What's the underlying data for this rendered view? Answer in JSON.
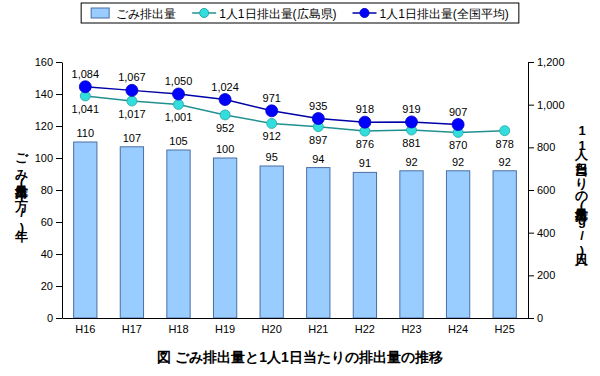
{
  "chart_data": {
    "type": "bar",
    "title": "図 ごみ排出量と1人1日当たりの排出量の推移",
    "ylabel": "ごみ排出量(万t/年)",
    "y2label": "1人1日当たりの排出量(g/人日)",
    "categories": [
      "H16",
      "H17",
      "H18",
      "H19",
      "H20",
      "H21",
      "H22",
      "H23",
      "H24",
      "H25"
    ],
    "series": [
      {
        "name": "ごみ排出量",
        "type": "bar",
        "color": "#99ccff",
        "values": [
          110,
          107,
          105,
          100,
          95,
          94,
          91,
          92,
          92,
          92
        ]
      },
      {
        "name": "1人1日排出量(広島県)",
        "type": "line",
        "axis": "y2",
        "color": "#33dddd",
        "marker": "circle",
        "values": [
          1041,
          1017,
          1001,
          952,
          912,
          897,
          876,
          881,
          870,
          878
        ],
        "value_labels": [
          "1,041",
          "1,017",
          "1,001",
          "952",
          "912",
          "897",
          "876",
          "881",
          "870",
          "878"
        ]
      },
      {
        "name": "1人1日排出量(全国平均)",
        "type": "line",
        "axis": "y2",
        "color": "#0000ff",
        "marker": "circle",
        "values": [
          1084,
          1067,
          1050,
          1024,
          971,
          935,
          918,
          919,
          907,
          null
        ],
        "value_labels": [
          "1,084",
          "1,067",
          "1,050",
          "1,024",
          "971",
          "935",
          "918",
          "919",
          "907",
          null
        ]
      }
    ],
    "ylim": [
      0,
      160
    ],
    "yticks": [
      0,
      20,
      40,
      60,
      80,
      100,
      120,
      140,
      160
    ],
    "y2lim": [
      0,
      1200
    ],
    "y2ticks": [
      0,
      200,
      400,
      600,
      800,
      {
        "value": 1000,
        "label": "1,000"
      },
      {
        "value": 1200,
        "label": "1,200"
      }
    ],
    "grid": false,
    "data_labels": true,
    "legend": "top"
  }
}
